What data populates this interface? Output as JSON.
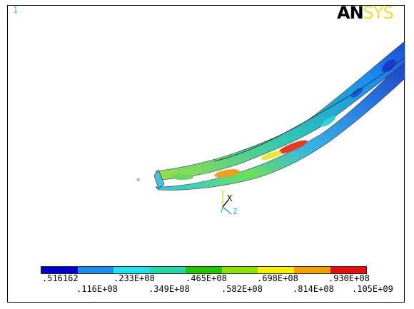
{
  "viewport": {
    "window_number": "1",
    "logo": {
      "left": "AN",
      "right": "SYS"
    }
  },
  "triad": {
    "x_label": "X",
    "y_label": "Y",
    "z_label": "Z"
  },
  "legend": {
    "colors": [
      "#0000c8",
      "#1a8ef0",
      "#1fe0f0",
      "#22d8a8",
      "#22c800",
      "#8ee000",
      "#f5f000",
      "#f5a000",
      "#e61010"
    ],
    "upper_labels": [
      ".516162",
      ".233E+08",
      ".465E+08",
      ".698E+08",
      ".930E+08"
    ],
    "lower_labels": [
      ".116E+08",
      ".349E+08",
      ".582E+08",
      ".814E+08",
      ".105E+09"
    ]
  }
}
